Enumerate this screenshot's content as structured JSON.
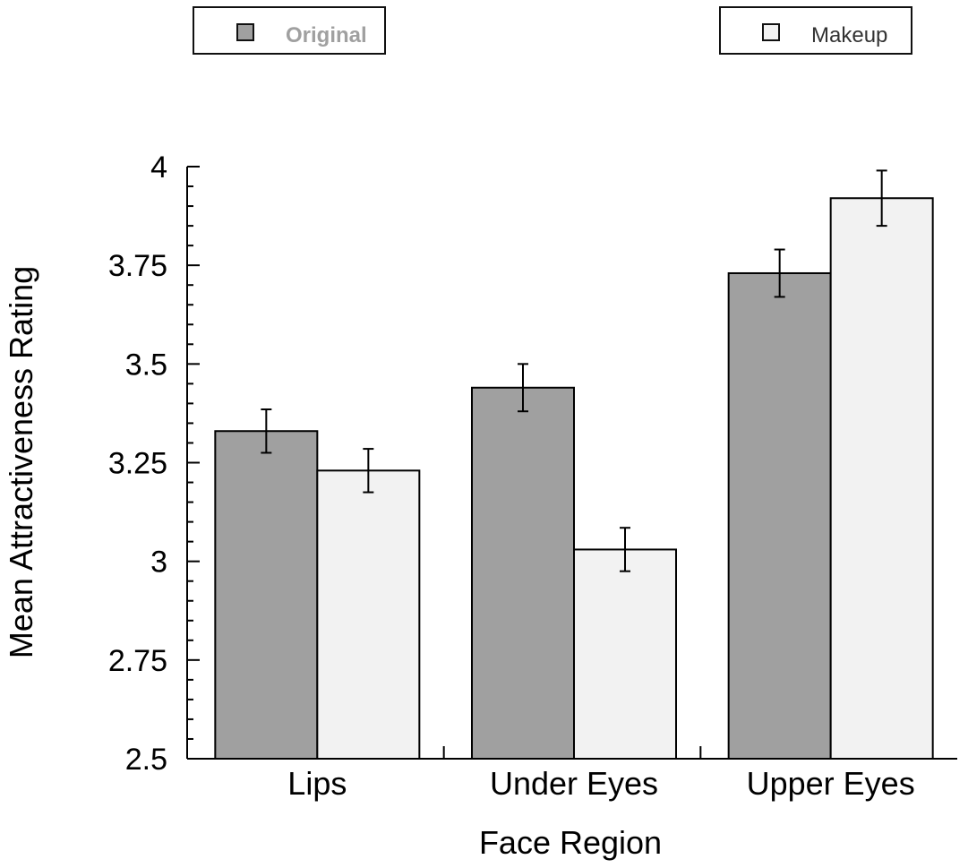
{
  "chart_data": {
    "type": "bar",
    "title": "",
    "xlabel": "Face Region",
    "ylabel": "Mean Attractiveness Rating",
    "ylim": [
      2.5,
      4.0
    ],
    "yticks": [
      2.5,
      2.75,
      3.0,
      3.25,
      3.5,
      3.75,
      4.0
    ],
    "ytick_labels": [
      "2.5",
      "2.75",
      "3",
      "3.25",
      "3.5",
      "3.75",
      "4"
    ],
    "categories": [
      "Lips",
      "Under Eyes",
      "Upper Eyes"
    ],
    "series": [
      {
        "name": "Original",
        "color": "#a0a0a0",
        "values": [
          3.33,
          3.44,
          3.73
        ],
        "error": [
          0.055,
          0.06,
          0.06
        ]
      },
      {
        "name": "Makeup",
        "color": "#f2f2f2",
        "values": [
          3.23,
          3.03,
          3.92
        ],
        "error": [
          0.055,
          0.055,
          0.07
        ]
      }
    ],
    "legend": "top, split left and right"
  }
}
